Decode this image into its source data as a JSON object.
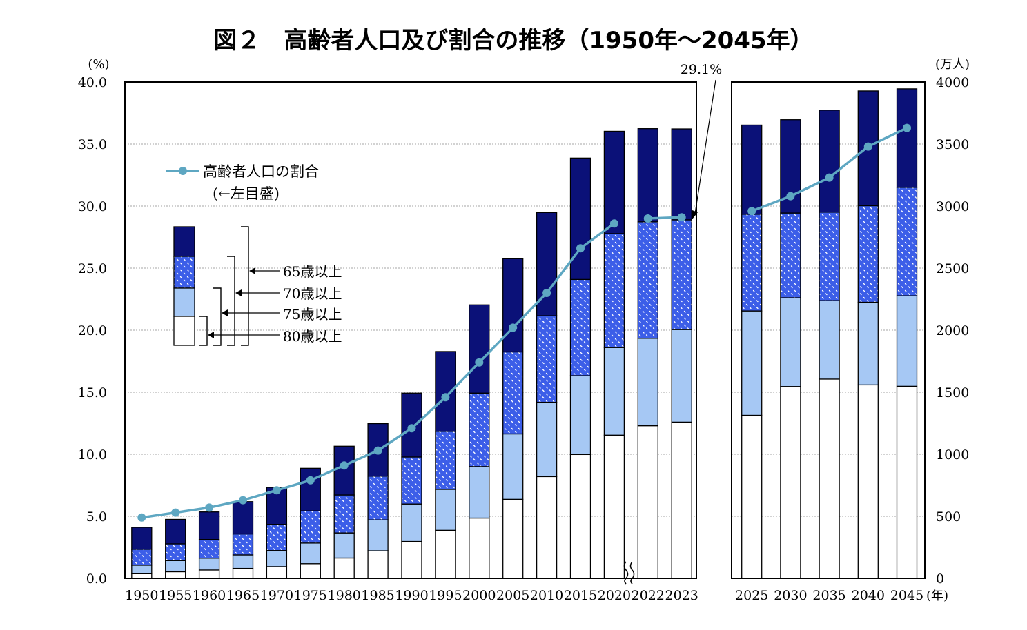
{
  "title": "図２　高齢者人口及び割合の推移（1950年～2045年）",
  "chart_data": {
    "type": "bar",
    "title": "図２　高齢者人口及び割合の推移（1950年～2045年）",
    "left_axis": {
      "unit_label": "(%)",
      "range": [
        0,
        40
      ],
      "ticks": [
        "0.0",
        "5.0",
        "10.0",
        "15.0",
        "20.0",
        "25.0",
        "30.0",
        "35.0",
        "40.0"
      ]
    },
    "right_axis": {
      "unit_label": "(万人)",
      "range": [
        0,
        4000
      ],
      "ticks": [
        "0",
        "500",
        "1000",
        "1500",
        "2000",
        "2500",
        "3000",
        "3500",
        "4000"
      ]
    },
    "x_unit_label": "(年)",
    "categories": [
      "1950",
      "1955",
      "1960",
      "1965",
      "1970",
      "1975",
      "1980",
      "1985",
      "1990",
      "1995",
      "2000",
      "2005",
      "2010",
      "2015",
      "2020",
      "2022",
      "2023",
      "2025",
      "2030",
      "2035",
      "2040",
      "2045"
    ],
    "series": [
      {
        "name": "80歳以上",
        "values": [
          37,
          53,
          67,
          80,
          95,
          118,
          164,
          222,
          297,
          387,
          486,
          637,
          820,
          998,
          1154,
          1230,
          1259,
          1314,
          1546,
          1606,
          1559,
          1548
        ]
      },
      {
        "name": "75歳以上",
        "values": [
          106,
          143,
          163,
          189,
          224,
          284,
          366,
          471,
          599,
          717,
          901,
          1164,
          1419,
          1633,
          1860,
          1935,
          2005,
          2155,
          2261,
          2238,
          2225,
          2277
        ]
      },
      {
        "name": "70歳以上",
        "values": [
          234,
          278,
          313,
          358,
          435,
          543,
          672,
          824,
          978,
          1185,
          1493,
          1825,
          2116,
          2409,
          2778,
          2873,
          2889,
          2934,
          2944,
          2951,
          3003,
          3151
        ]
      },
      {
        "name": "65歳以上",
        "values": [
          411,
          475,
          535,
          618,
          733,
          887,
          1065,
          1247,
          1493,
          1828,
          2204,
          2576,
          2948,
          3387,
          3603,
          3624,
          3622,
          3653,
          3696,
          3773,
          3928,
          3945
        ]
      },
      {
        "name": "高齢者人口の割合",
        "axis": "left",
        "values": [
          4.9,
          5.3,
          5.7,
          6.3,
          7.1,
          7.9,
          9.1,
          10.3,
          12.1,
          14.6,
          17.4,
          20.2,
          23.0,
          26.6,
          28.6,
          null,
          null,
          29.6,
          30.8,
          32.3,
          34.8,
          36.3
        ]
      }
    ],
    "series_2022_2023_ratio": [
      29.0,
      29.1
    ],
    "annotation": "29.1%",
    "legend": {
      "line_label": "高齢者人口の割合",
      "line_sub": "(←左目盛)",
      "bar_labels": [
        "65歳以上",
        "70歳以上",
        "75歳以上",
        "80歳以上"
      ],
      "placement": "top-left"
    },
    "grid": true
  },
  "colors": {
    "age65": "#0b1178",
    "age70": "#3c5ee8",
    "age75": "#a6c8f4",
    "age80": "#ffffff",
    "line": "#5ea7c2",
    "grid": "#888888"
  }
}
